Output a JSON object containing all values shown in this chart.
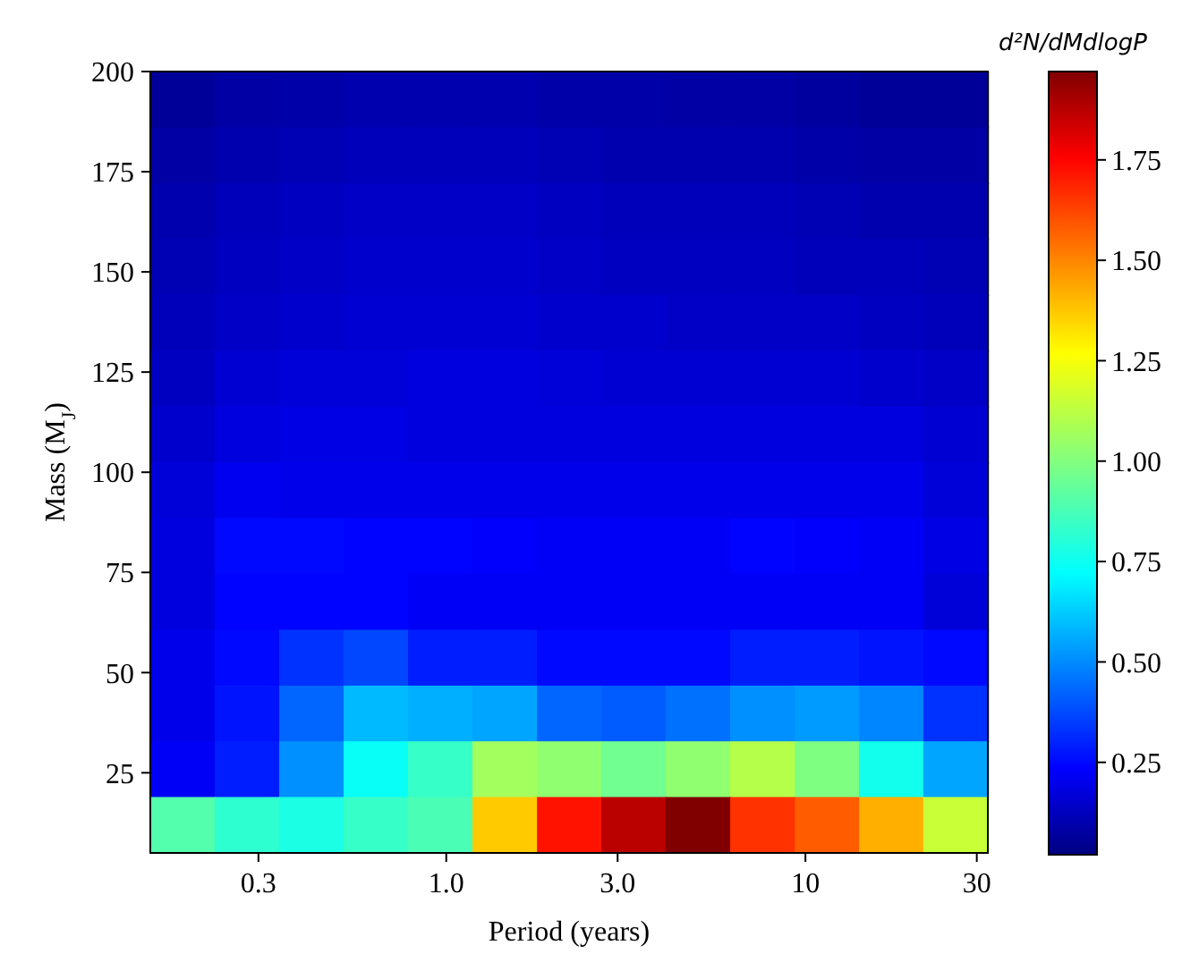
{
  "chart_data": {
    "type": "heatmap",
    "xlabel": "Period (years)",
    "ylabel": "Mass (M$_{J}$)",
    "clabel": "d²N/dMdlogP",
    "log": "x",
    "x": [
      0.184,
      0.279,
      0.421,
      0.637,
      0.962,
      1.455,
      2.2,
      3.32,
      5.02,
      7.59,
      11.5,
      17.3,
      26.2
    ],
    "y": [
      193,
      179.1,
      165.2,
      151.2,
      137.3,
      123.4,
      109.4,
      95.5,
      81.6,
      67.7,
      53.7,
      39.8,
      25.9,
      12
    ],
    "xlim": [
      0.15,
      32.2
    ],
    "xticks": [
      0.3,
      {
        "value": 1,
        "label": "1.0"
      },
      {
        "value": 3,
        "label": "3.0"
      },
      10,
      30
    ],
    "ylim": [
      5,
      200
    ],
    "yticks": [
      25,
      50,
      75,
      100,
      125,
      150,
      175,
      200
    ],
    "clim": [
      0.02,
      1.97
    ],
    "cticks": [
      0.25,
      {
        "value": 0.5,
        "label": "0.50"
      },
      0.75,
      {
        "value": 1,
        "label": "1.00"
      },
      1.25,
      {
        "value": 1.5,
        "label": "1.50"
      },
      1.75
    ],
    "cells": [
      [
        0.06,
        0.08,
        0.09,
        0.1,
        0.1,
        0.1,
        0.09,
        0.09,
        0.08,
        0.08,
        0.07,
        0.06,
        0.06
      ],
      [
        0.08,
        0.1,
        0.11,
        0.12,
        0.12,
        0.12,
        0.11,
        0.1,
        0.1,
        0.1,
        0.09,
        0.08,
        0.08
      ],
      [
        0.1,
        0.12,
        0.13,
        0.14,
        0.14,
        0.14,
        0.13,
        0.12,
        0.12,
        0.12,
        0.11,
        0.1,
        0.1
      ],
      [
        0.11,
        0.13,
        0.14,
        0.15,
        0.15,
        0.15,
        0.14,
        0.13,
        0.13,
        0.13,
        0.12,
        0.12,
        0.11
      ],
      [
        0.12,
        0.14,
        0.15,
        0.16,
        0.16,
        0.16,
        0.15,
        0.15,
        0.14,
        0.14,
        0.14,
        0.13,
        0.12
      ],
      [
        0.13,
        0.16,
        0.17,
        0.17,
        0.18,
        0.18,
        0.17,
        0.16,
        0.16,
        0.16,
        0.16,
        0.15,
        0.14
      ],
      [
        0.15,
        0.18,
        0.19,
        0.19,
        0.18,
        0.18,
        0.18,
        0.18,
        0.18,
        0.18,
        0.18,
        0.18,
        0.16
      ],
      [
        0.17,
        0.21,
        0.2,
        0.2,
        0.2,
        0.2,
        0.2,
        0.2,
        0.2,
        0.2,
        0.2,
        0.2,
        0.17
      ],
      [
        0.18,
        0.25,
        0.25,
        0.24,
        0.24,
        0.23,
        0.22,
        0.22,
        0.22,
        0.24,
        0.23,
        0.22,
        0.19
      ],
      [
        0.18,
        0.24,
        0.24,
        0.24,
        0.22,
        0.22,
        0.22,
        0.22,
        0.22,
        0.22,
        0.22,
        0.22,
        0.17
      ],
      [
        0.2,
        0.25,
        0.33,
        0.37,
        0.29,
        0.29,
        0.25,
        0.25,
        0.25,
        0.29,
        0.29,
        0.27,
        0.25
      ],
      [
        0.2,
        0.27,
        0.43,
        0.59,
        0.57,
        0.55,
        0.43,
        0.41,
        0.45,
        0.51,
        0.53,
        0.49,
        0.33
      ],
      [
        0.22,
        0.29,
        0.51,
        0.74,
        0.84,
        1.07,
        1.03,
        0.96,
        1.03,
        1.11,
        0.99,
        0.76,
        0.55
      ],
      [
        0.9,
        0.82,
        0.78,
        0.84,
        0.88,
        1.37,
        1.72,
        1.87,
        1.97,
        1.66,
        1.58,
        1.42,
        1.15
      ]
    ]
  }
}
